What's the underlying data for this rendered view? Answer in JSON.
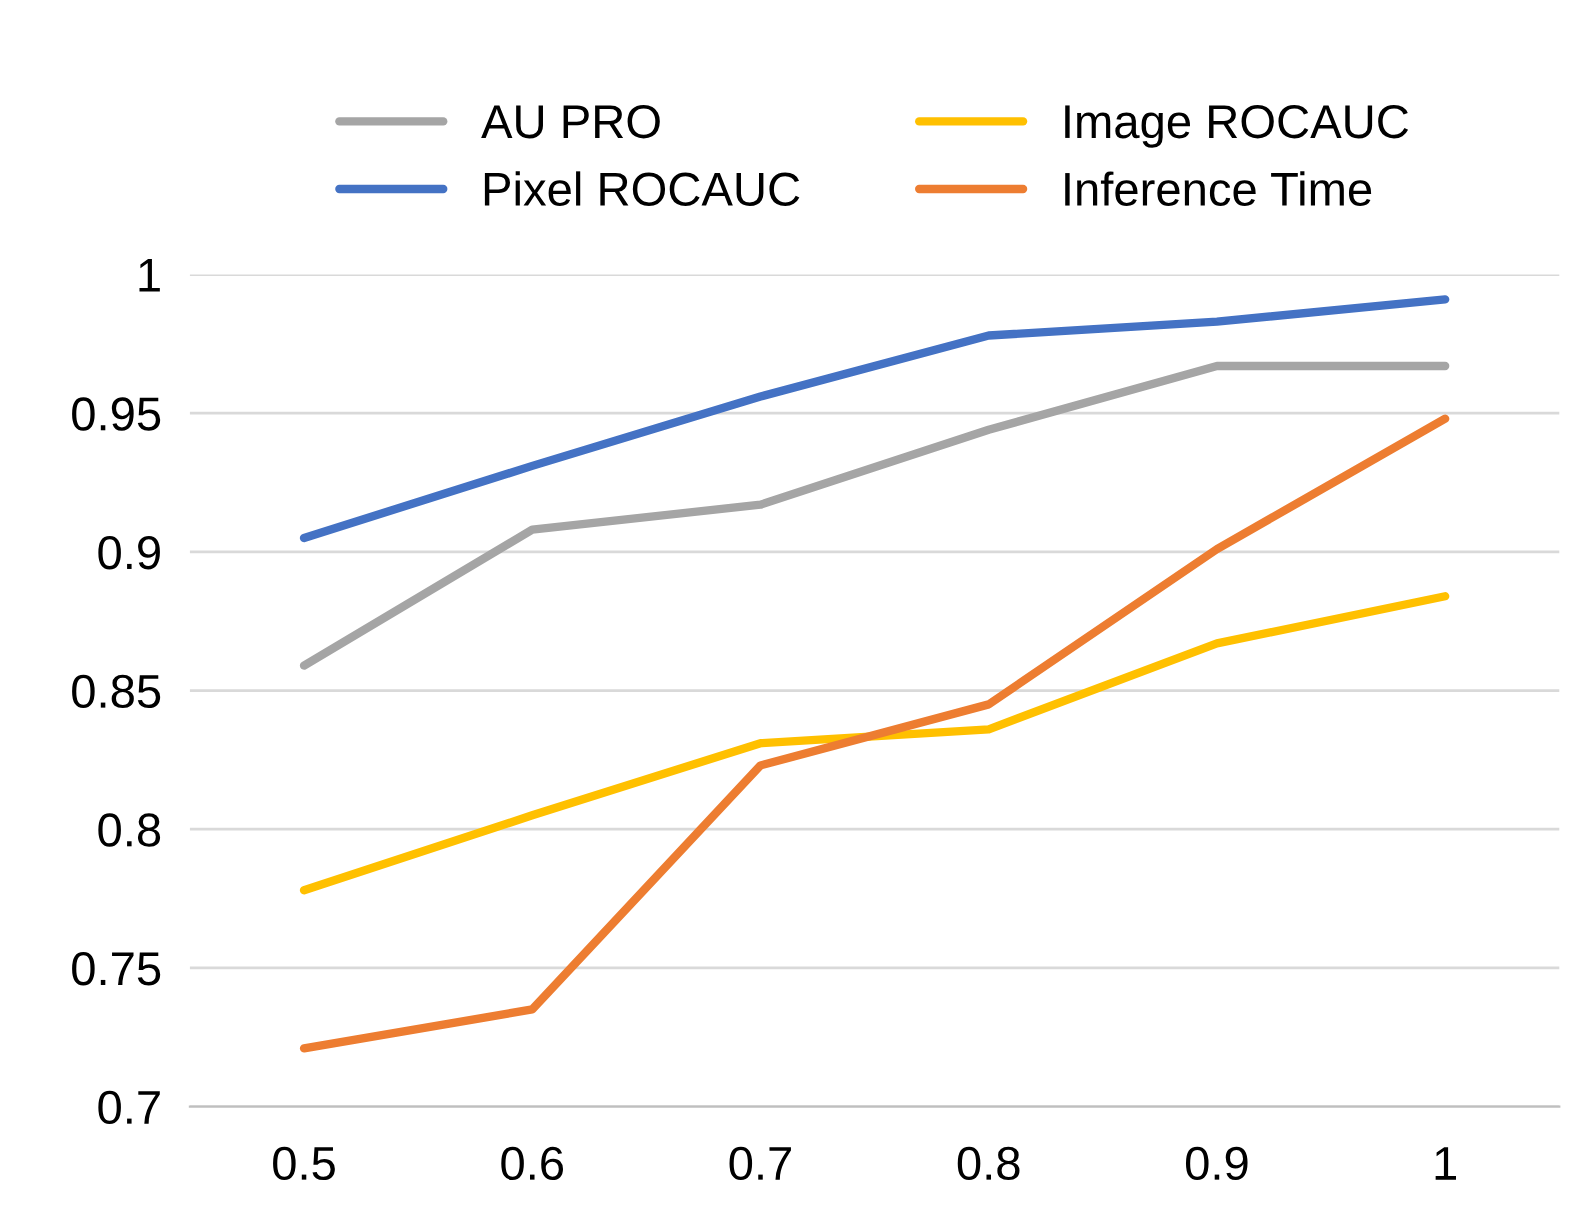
{
  "chart_data": {
    "type": "line",
    "categories": [
      "0.5",
      "0.6",
      "0.7",
      "0.8",
      "0.9",
      "1"
    ],
    "series": [
      {
        "name": "AU PRO",
        "color": "#a5a5a5",
        "values": [
          0.859,
          0.908,
          0.917,
          0.944,
          0.967,
          0.967
        ]
      },
      {
        "name": "Pixel ROCAUC",
        "color": "#4472c4",
        "values": [
          0.905,
          0.931,
          0.956,
          0.978,
          0.983,
          0.991
        ]
      },
      {
        "name": "Image ROCAUC",
        "color": "#ffc000",
        "values": [
          0.778,
          0.805,
          0.831,
          0.836,
          0.867,
          0.884
        ]
      },
      {
        "name": "Inference Time",
        "color": "#ed7d31",
        "values": [
          0.721,
          0.735,
          0.823,
          0.845,
          0.901,
          0.948
        ]
      }
    ],
    "ylim": [
      0.7,
      1
    ],
    "yticks": [
      0.7,
      0.75,
      0.8,
      0.85,
      0.9,
      0.95,
      1
    ],
    "grid": "y",
    "legend": "top",
    "marker": "none",
    "line_style": "solid"
  }
}
